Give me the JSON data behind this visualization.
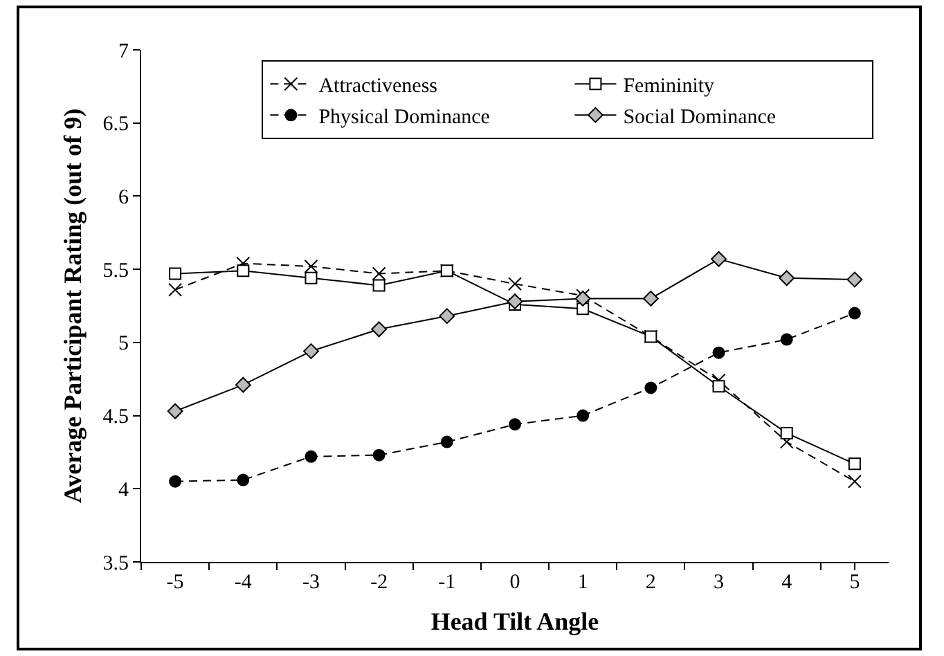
{
  "chart_data": {
    "type": "line",
    "xlabel": "Head Tilt Angle",
    "ylabel": "Average Participant Rating (out of 9)",
    "categories": [
      "-5",
      "-4",
      "-3",
      "-2",
      "-1",
      "0",
      "1",
      "2",
      "3",
      "4",
      "5"
    ],
    "series": [
      {
        "name": "Attractiveness",
        "color": "#000000",
        "marker": "cross",
        "line_style": "dashed",
        "values": [
          5.36,
          5.54,
          5.52,
          5.47,
          5.49,
          5.4,
          5.32,
          5.04,
          4.74,
          4.32,
          4.05
        ]
      },
      {
        "name": "Femininity",
        "color": "#000000",
        "marker": "square",
        "line_style": "solid",
        "values": [
          5.47,
          5.49,
          5.44,
          5.39,
          5.49,
          5.26,
          5.23,
          5.04,
          4.7,
          4.38,
          4.17
        ]
      },
      {
        "name": "Physical Dominance",
        "color": "#000000",
        "marker": "circle",
        "line_style": "dashed",
        "values": [
          4.05,
          4.06,
          4.22,
          4.23,
          4.32,
          4.44,
          4.5,
          4.69,
          4.93,
          5.02,
          5.2
        ]
      },
      {
        "name": "Social Dominance",
        "color": "#000000",
        "marker": "diamond",
        "line_style": "solid",
        "values": [
          4.53,
          4.71,
          4.94,
          5.09,
          5.18,
          5.28,
          5.3,
          5.3,
          5.57,
          5.44,
          5.43
        ]
      }
    ],
    "ylim": [
      3.5,
      7
    ],
    "yticks": [
      3.5,
      4,
      4.5,
      5,
      5.5,
      6,
      6.5,
      7
    ],
    "grid": false,
    "legend": "top right"
  }
}
